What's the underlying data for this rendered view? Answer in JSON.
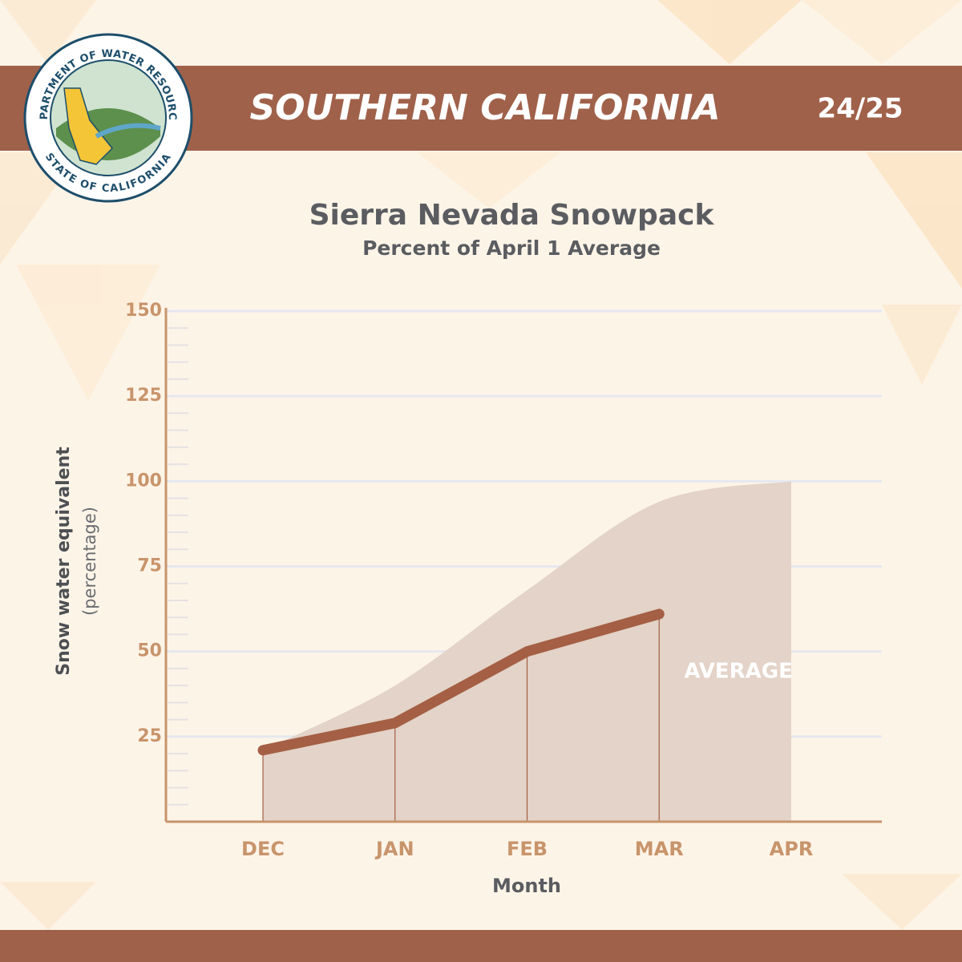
{
  "header": {
    "title": "SOUTHERN CALIFORNIA",
    "season": "24/25",
    "seal_top": "DEPARTMENT OF WATER RESOURCES",
    "seal_bottom": "STATE OF CALIFORNIA"
  },
  "chart_data": {
    "type": "line",
    "title": "Sierra Nevada Snowpack",
    "subtitle": "Percent of April 1 Average",
    "y_label": "Snow water equivalent",
    "y_label_sub": "(percentage)",
    "x_label": "Month",
    "categories": [
      "DEC",
      "JAN",
      "FEB",
      "MAR",
      "APR"
    ],
    "series": [
      {
        "name": "AVERAGE",
        "type": "area",
        "color": "#e3d3c8",
        "values": [
          21,
          40,
          68,
          94,
          100
        ]
      },
      {
        "type": "line",
        "color": "#a45f44",
        "values": [
          21,
          29,
          50,
          61,
          null
        ]
      }
    ],
    "ylim": [
      0,
      150
    ],
    "yticks": [
      25,
      50,
      75,
      100,
      125,
      150
    ],
    "grid": true
  }
}
